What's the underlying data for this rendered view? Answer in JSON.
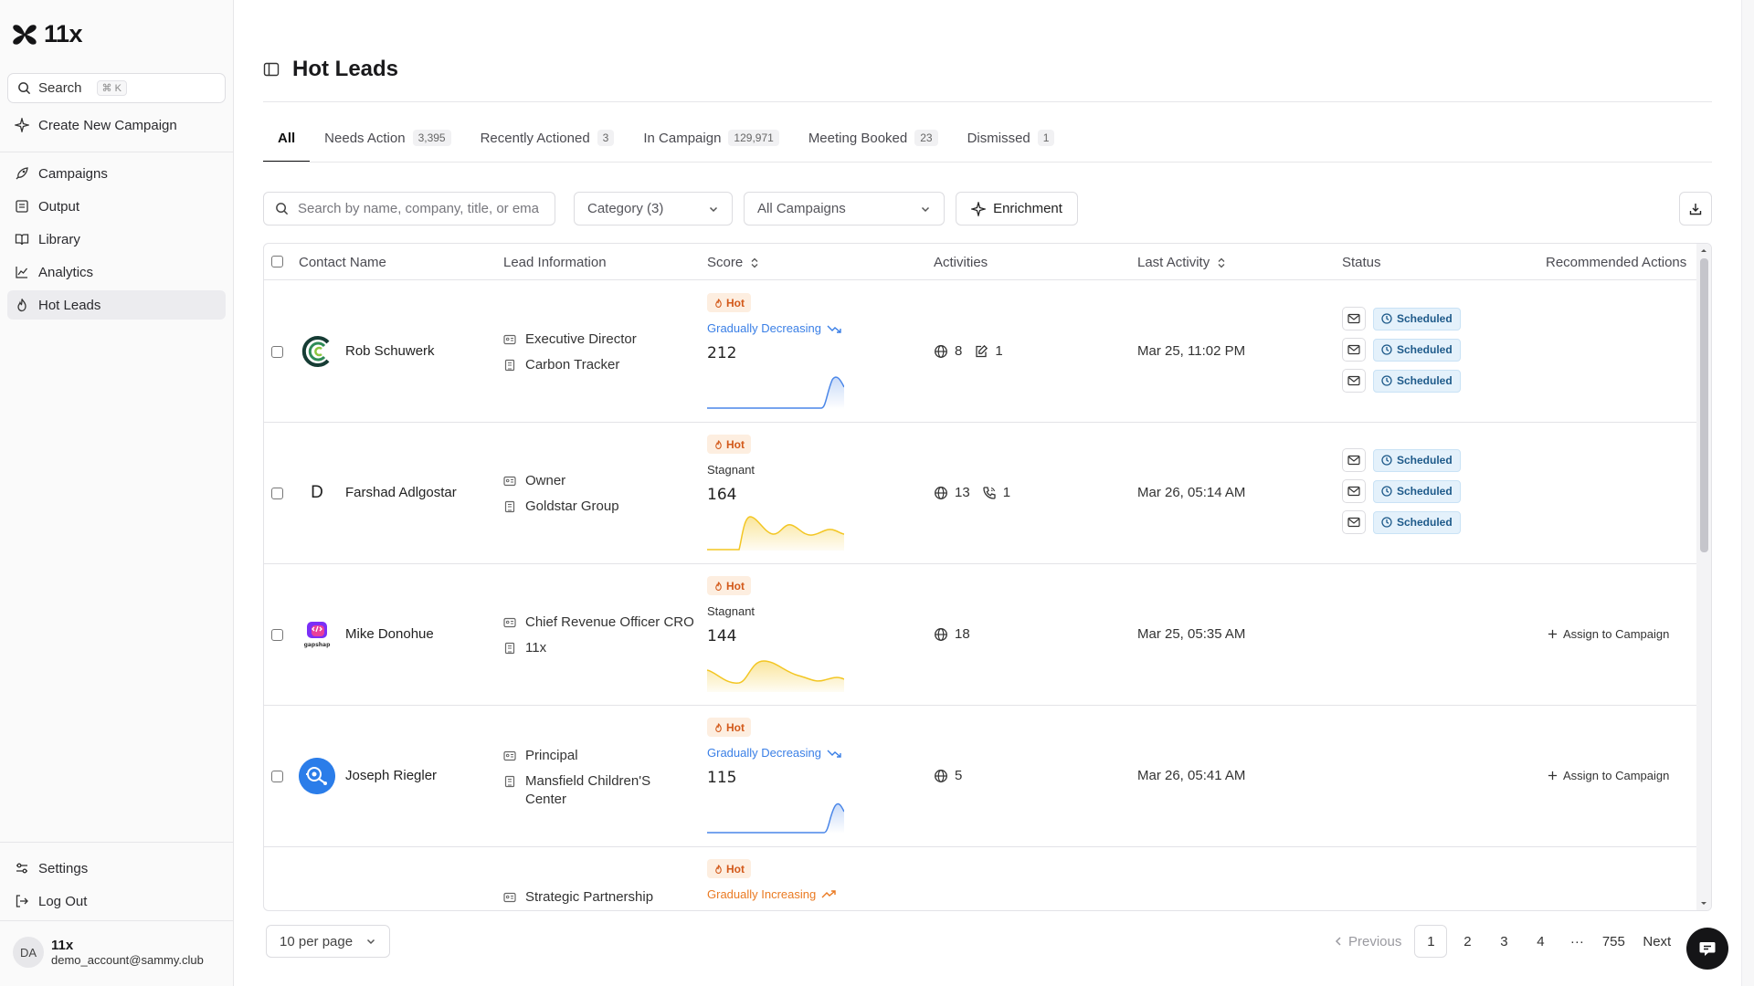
{
  "sidebar": {
    "brand": "11x",
    "search_label": "Search",
    "search_shortcut": "⌘ K",
    "create_campaign": "Create New Campaign",
    "nav": [
      {
        "label": "Campaigns",
        "icon": "rocket-icon"
      },
      {
        "label": "Output",
        "icon": "list-icon"
      },
      {
        "label": "Library",
        "icon": "book-icon"
      },
      {
        "label": "Analytics",
        "icon": "chart-line-icon"
      },
      {
        "label": "Hot Leads",
        "icon": "flame-icon"
      }
    ],
    "settings": "Settings",
    "logout": "Log Out",
    "user": {
      "initials": "DA",
      "name": "11x",
      "email": "demo_account@sammy.club"
    }
  },
  "header": {
    "title": "Hot Leads"
  },
  "tabs": [
    {
      "label": "All",
      "count": ""
    },
    {
      "label": "Needs Action",
      "count": "3,395"
    },
    {
      "label": "Recently Actioned",
      "count": "3"
    },
    {
      "label": "In Campaign",
      "count": "129,971"
    },
    {
      "label": "Meeting Booked",
      "count": "23"
    },
    {
      "label": "Dismissed",
      "count": "1"
    }
  ],
  "filters": {
    "search_placeholder": "Search by name, company, title, or ema",
    "category": "Category (3)",
    "campaigns": "All Campaigns",
    "enrichment": "Enrichment"
  },
  "table": {
    "columns": {
      "contact": "Contact Name",
      "lead": "Lead Information",
      "score": "Score",
      "activities": "Activities",
      "last_activity": "Last Activity",
      "status": "Status",
      "recommended": "Recommended Actions"
    },
    "rows": [
      {
        "name": "Rob Schuwerk",
        "title": "Executive Director",
        "company": "Carbon Tracker",
        "badge": "Hot",
        "trend": "Gradually Decreasing",
        "score": "212",
        "visits": "8",
        "second_activity": "1",
        "last_activity": "Mar 25, 11:02 PM",
        "status": [
          "Scheduled",
          "Scheduled",
          "Scheduled"
        ],
        "action": ""
      },
      {
        "name": "Farshad Adlgostar",
        "initial": "D",
        "title": "Owner",
        "company": "Goldstar Group",
        "badge": "Hot",
        "trend": "Stagnant",
        "score": "164",
        "visits": "13",
        "second_activity": "1",
        "last_activity": "Mar 26, 05:14 AM",
        "status": [
          "Scheduled",
          "Scheduled",
          "Scheduled"
        ],
        "action": ""
      },
      {
        "name": "Mike Donohue",
        "title": "Chief Revenue Officer CRO",
        "company": "11x",
        "badge": "Hot",
        "trend": "Stagnant",
        "score": "144",
        "visits": "18",
        "last_activity": "Mar 25, 05:35 AM",
        "action": "Assign to Campaign"
      },
      {
        "name": "Joseph Riegler",
        "title": "Principal",
        "company": "Mansfield Children'S Center",
        "badge": "Hot",
        "trend": "Gradually Decreasing",
        "score": "115",
        "visits": "5",
        "last_activity": "Mar 26, 05:41 AM",
        "action": "Assign to Campaign"
      },
      {
        "name": "",
        "title": "Strategic Partnership",
        "badge": "Hot",
        "trend": "Gradually Increasing"
      }
    ]
  },
  "pagination": {
    "per_page": "10 per page",
    "previous": "Previous",
    "pages": [
      "1",
      "2",
      "3",
      "4"
    ],
    "ellipsis": "···",
    "last": "755",
    "next": "Next"
  },
  "colors": {
    "hot": "#d3591a",
    "decreasing": "#3a7fe6",
    "increasing": "#ea7a22",
    "scheduled": "#1e5a8a",
    "spark_blue": "#4a86e8",
    "spark_yellow": "#f3c623"
  }
}
